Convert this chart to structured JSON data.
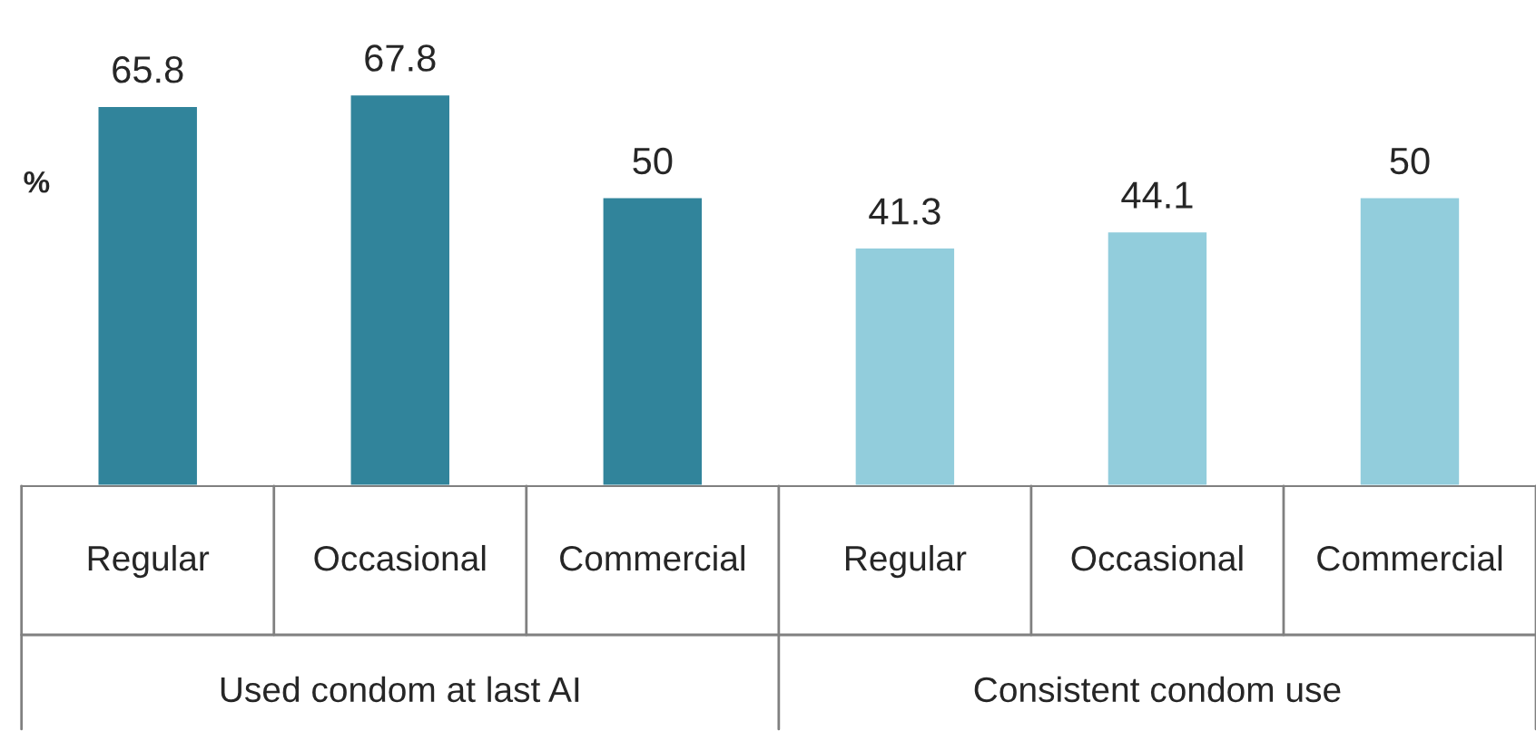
{
  "chart_data": {
    "type": "bar",
    "ylabel": "%",
    "categories": [
      "Regular",
      "Occasional",
      "Commercial",
      "Regular",
      "Occasional",
      "Commercial"
    ],
    "values": [
      65.8,
      67.8,
      50,
      41.3,
      44.1,
      50
    ],
    "colors": [
      "#31849b",
      "#31849b",
      "#31849b",
      "#92cddc",
      "#92cddc",
      "#92cddc"
    ],
    "data_labels": true,
    "annotations": [
      "Used condom at last AI",
      "Consistent condom use"
    ],
    "legend": false
  }
}
